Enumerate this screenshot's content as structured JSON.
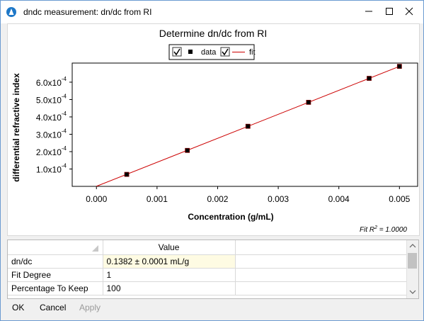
{
  "window": {
    "title": "dndc measurement: dn/dc from RI"
  },
  "chart_data": {
    "type": "scatter",
    "title": "Determine dn/dc from RI",
    "xlabel": "Concentration (g/mL)",
    "ylabel": "differential refractive index",
    "x_ticks": [
      "0.000",
      "0.001",
      "0.002",
      "0.003",
      "0.004",
      "0.005"
    ],
    "y_ticks": [
      {
        "mant": "1.0x10",
        "exp": "-4"
      },
      {
        "mant": "2.0x10",
        "exp": "-4"
      },
      {
        "mant": "3.0x10",
        "exp": "-4"
      },
      {
        "mant": "4.0x10",
        "exp": "-4"
      },
      {
        "mant": "5.0x10",
        "exp": "-4"
      },
      {
        "mant": "6.0x10",
        "exp": "-4"
      }
    ],
    "xlim": [
      -0.0004,
      0.0053
    ],
    "ylim": [
      0.0,
      0.00071
    ],
    "legend": [
      {
        "name": "data",
        "checked": true
      },
      {
        "name": "fit",
        "checked": true
      }
    ],
    "series": [
      {
        "name": "data",
        "type": "scatter",
        "x": [
          0.0005,
          0.0015,
          0.0025,
          0.0035,
          0.0045,
          0.005
        ],
        "y": [
          6.9e-05,
          0.000207,
          0.000346,
          0.000484,
          0.000622,
          0.000691
        ],
        "color": "#000000"
      },
      {
        "name": "fit",
        "type": "line",
        "x": [
          0.0,
          0.005
        ],
        "y": [
          5e-07,
          0.000691
        ],
        "color": "#cc0000"
      }
    ],
    "fit_note": {
      "prefix": "Fit R",
      "exp": "2",
      "suffix": " = 1.0000"
    },
    "grid": false
  },
  "grid": {
    "header": "Value",
    "rows": [
      {
        "name": "dn/dc",
        "value": "0.1382 ± 0.0001 mL/g"
      },
      {
        "name": "Fit Degree",
        "value": "1"
      },
      {
        "name": "Percentage To Keep",
        "value": "100"
      }
    ]
  },
  "buttons": {
    "ok": "OK",
    "cancel": "Cancel",
    "apply": "Apply"
  }
}
